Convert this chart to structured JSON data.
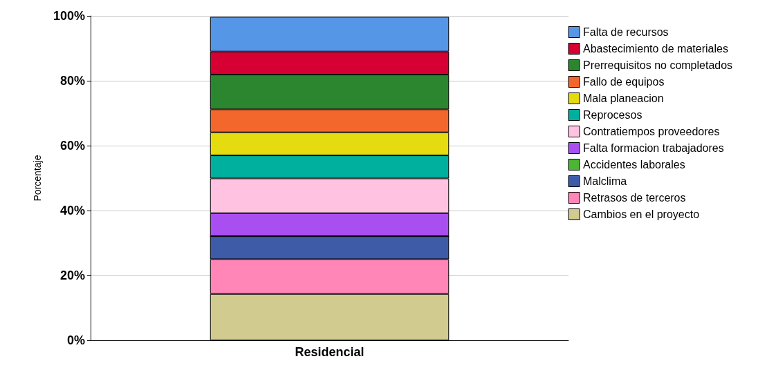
{
  "chart_data": {
    "type": "bar",
    "stacked": true,
    "ylabel": "Porcentaje",
    "categories": [
      "Residencial"
    ],
    "ylim": [
      0,
      100
    ],
    "yticks": [
      {
        "value": 0,
        "label": "0%"
      },
      {
        "value": 20,
        "label": "20%"
      },
      {
        "value": 40,
        "label": "40%"
      },
      {
        "value": 60,
        "label": "60%"
      },
      {
        "value": 80,
        "label": "80%"
      },
      {
        "value": 100,
        "label": "100%"
      }
    ],
    "grid": "y",
    "legend": "right",
    "series": [
      {
        "name": "Cambios en el proyecto",
        "color": "#d2cb90",
        "values": [
          14.3
        ]
      },
      {
        "name": "Retrasos de terceros",
        "color": "#ff86b6",
        "values": [
          10.7
        ]
      },
      {
        "name": "Malclima",
        "color": "#3e5ba8",
        "values": [
          7.1
        ]
      },
      {
        "name": "Accidentes laborales",
        "color": "#4cb534",
        "values": [
          0
        ]
      },
      {
        "name": "Falta formacion trabajadores",
        "color": "#a94ff2",
        "values": [
          7.1
        ]
      },
      {
        "name": "Contratiempos proveedores",
        "color": "#ffc2e0",
        "values": [
          10.7
        ]
      },
      {
        "name": "Reprocesos",
        "color": "#00b09f",
        "values": [
          7.1
        ]
      },
      {
        "name": "Mala planeacion",
        "color": "#e5dc10",
        "values": [
          7.1
        ]
      },
      {
        "name": "Fallo de equipos",
        "color": "#f4672c",
        "values": [
          7.1
        ]
      },
      {
        "name": "Prerrequisitos no completados",
        "color": "#2c8630",
        "values": [
          10.7
        ]
      },
      {
        "name": "Abastecimiento de materiales",
        "color": "#d70032",
        "values": [
          7.1
        ]
      },
      {
        "name": "Falta de recursos",
        "color": "#5596e6",
        "values": [
          10.7
        ]
      }
    ]
  }
}
